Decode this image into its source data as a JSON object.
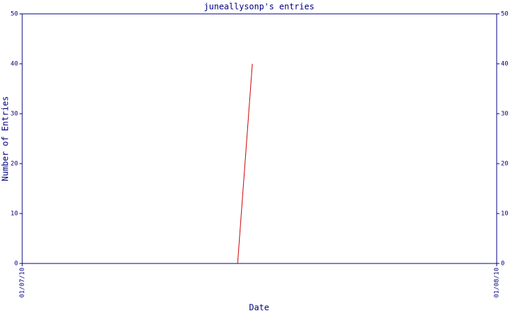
{
  "chart_data": {
    "type": "line",
    "title": "juneallysonp's entries",
    "xlabel": "Date",
    "ylabel": "Number of Entries",
    "x": [
      0.454,
      0.485
    ],
    "series": [
      {
        "color": "#cc0000",
        "values": [
          0,
          40
        ]
      }
    ],
    "xlim": [
      0,
      1
    ],
    "xticks": [
      {
        "value": 0,
        "label": "01/07/10"
      },
      {
        "value": 1,
        "label": "01/08/10"
      }
    ],
    "ylim": [
      0,
      50
    ],
    "yticks": [
      0,
      10,
      20,
      30,
      40,
      50
    ],
    "y2lim": [
      0,
      50
    ],
    "y2ticks": [
      0,
      10,
      20,
      30,
      40,
      50
    ],
    "axis_color": "#000080",
    "grid": false
  }
}
